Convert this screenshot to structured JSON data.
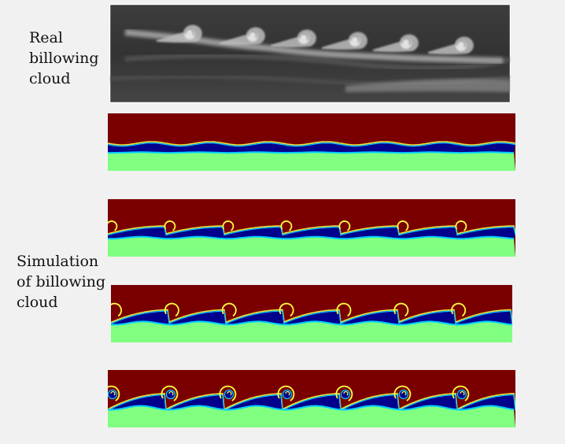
{
  "labels": {
    "real": "Real\nbillowing\ncloud",
    "simulation": "Simulation\nof billowing\ncloud"
  },
  "colors": {
    "upper_fluid": "#7a0000",
    "cloud_layer": "#00008c",
    "lower_fluid": "#80ff80",
    "interface_edge": "#00ccff",
    "interface_highlight": "#ffff40"
  },
  "panels": [
    {
      "stage": 1,
      "amplitude": 0.15
    },
    {
      "stage": 2,
      "amplitude": 0.5
    },
    {
      "stage": 3,
      "amplitude": 0.8
    },
    {
      "stage": 4,
      "amplitude": 1.0
    }
  ]
}
